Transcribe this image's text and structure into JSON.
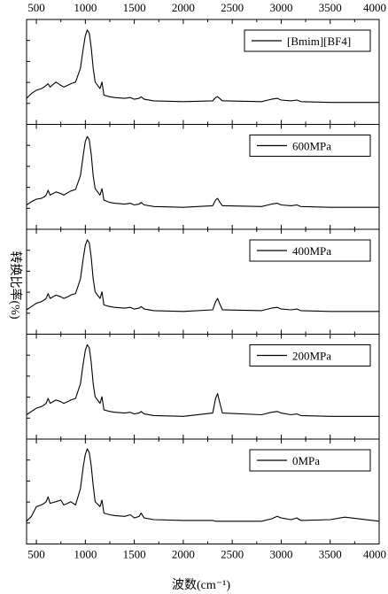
{
  "chart_data": {
    "type": "line",
    "xlabel": "波数(cm⁻¹)",
    "ylabel": "转换比率(%)",
    "xlim": [
      400,
      4000
    ],
    "xticks": [
      "500",
      "1000",
      "1500",
      "2000",
      "2500",
      "3000",
      "3500",
      "4000"
    ],
    "xtick_values": [
      500,
      1000,
      1500,
      2000,
      2500,
      3000,
      3500,
      4000
    ],
    "panels": [
      {
        "legend": "[Bmim][BF4]",
        "series": [
          {
            "x": [
              400,
              450,
              500,
              550,
              580,
              600,
              620,
              640,
              700,
              750,
              780,
              820,
              850,
              900,
              950,
              980,
              1000,
              1020,
              1040,
              1060,
              1080,
              1100,
              1150,
              1170,
              1190,
              1250,
              1300,
              1400,
              1460,
              1500,
              1550,
              1570,
              1600,
              1700,
              2000,
              2300,
              2330,
              2350,
              2370,
              2400,
              2800,
              2900,
              2960,
              3000,
              3100,
              3160,
              3200,
              3500,
              3650,
              4000
            ],
            "y": [
              8,
              14,
              18,
              20,
              22,
              24,
              26,
              22,
              28,
              24,
              22,
              24,
              26,
              28,
              45,
              70,
              85,
              92,
              88,
              70,
              45,
              28,
              20,
              28,
              12,
              10,
              9,
              8,
              9,
              7,
              8,
              10,
              7,
              5,
              4,
              5,
              9,
              10,
              8,
              5,
              4,
              7,
              8,
              6,
              5,
              6,
              4,
              3,
              3,
              3
            ]
          }
        ]
      },
      {
        "legend": "600MPa",
        "series": [
          {
            "x": [
              400,
              450,
              500,
              550,
              580,
              600,
              620,
              640,
              700,
              750,
              780,
              820,
              850,
              900,
              950,
              980,
              1000,
              1020,
              1040,
              1060,
              1080,
              1100,
              1150,
              1170,
              1190,
              1250,
              1300,
              1400,
              1460,
              1500,
              1550,
              1570,
              1600,
              1700,
              2000,
              2300,
              2330,
              2350,
              2370,
              2400,
              2800,
              2900,
              2960,
              3000,
              3100,
              3160,
              3200,
              3500,
              3650,
              4000
            ],
            "y": [
              6,
              10,
              13,
              14,
              16,
              18,
              24,
              18,
              22,
              20,
              18,
              21,
              23,
              25,
              42,
              68,
              84,
              90,
              86,
              68,
              42,
              26,
              18,
              26,
              12,
              9,
              8,
              7,
              8,
              6,
              7,
              9,
              6,
              4,
              3,
              5,
              12,
              14,
              10,
              5,
              4,
              7,
              8,
              6,
              5,
              6,
              4,
              3,
              3,
              3
            ]
          }
        ]
      },
      {
        "legend": "400MPa",
        "series": [
          {
            "x": [
              400,
              450,
              500,
              550,
              580,
              600,
              620,
              640,
              700,
              750,
              780,
              820,
              850,
              900,
              950,
              980,
              1000,
              1020,
              1040,
              1060,
              1080,
              1100,
              1150,
              1170,
              1190,
              1250,
              1300,
              1400,
              1460,
              1500,
              1550,
              1570,
              1600,
              1700,
              2000,
              2300,
              2330,
              2350,
              2370,
              2400,
              2800,
              2900,
              2960,
              3000,
              3100,
              3160,
              3200,
              3500,
              3650,
              4000
            ],
            "y": [
              6,
              10,
              14,
              16,
              18,
              20,
              26,
              20,
              24,
              22,
              20,
              22,
              24,
              26,
              44,
              70,
              85,
              92,
              88,
              70,
              44,
              28,
              20,
              28,
              12,
              10,
              9,
              8,
              9,
              7,
              8,
              10,
              7,
              5,
              4,
              6,
              16,
              20,
              14,
              6,
              5,
              8,
              9,
              7,
              6,
              7,
              5,
              4,
              4,
              4
            ]
          }
        ]
      },
      {
        "legend": "200MPa",
        "series": [
          {
            "x": [
              400,
              450,
              500,
              550,
              580,
              600,
              620,
              640,
              700,
              750,
              780,
              820,
              850,
              900,
              950,
              980,
              1000,
              1020,
              1040,
              1060,
              1080,
              1100,
              1150,
              1170,
              1190,
              1250,
              1300,
              1400,
              1460,
              1500,
              1550,
              1570,
              1600,
              1700,
              2000,
              2300,
              2330,
              2350,
              2370,
              2400,
              2800,
              2900,
              2960,
              3000,
              3100,
              3160,
              3200,
              3500,
              3650,
              4000
            ],
            "y": [
              6,
              10,
              14,
              16,
              18,
              20,
              26,
              20,
              24,
              22,
              20,
              22,
              24,
              26,
              44,
              70,
              85,
              92,
              88,
              70,
              44,
              28,
              20,
              28,
              12,
              10,
              9,
              8,
              9,
              7,
              8,
              10,
              7,
              5,
              4,
              8,
              26,
              32,
              22,
              8,
              6,
              9,
              10,
              8,
              6,
              7,
              5,
              4,
              4,
              4
            ]
          }
        ]
      },
      {
        "legend": "0MPa",
        "series": [
          {
            "x": [
              400,
              450,
              500,
              550,
              580,
              600,
              620,
              640,
              700,
              750,
              780,
              820,
              850,
              900,
              950,
              980,
              1000,
              1020,
              1040,
              1060,
              1080,
              1100,
              1150,
              1170,
              1190,
              1250,
              1300,
              1400,
              1460,
              1500,
              1550,
              1570,
              1600,
              1700,
              2000,
              2300,
              2330,
              2350,
              2370,
              2400,
              2800,
              2900,
              2960,
              3000,
              3100,
              3160,
              3200,
              3500,
              3650,
              4000
            ],
            "y": [
              4,
              10,
              22,
              24,
              26,
              28,
              34,
              26,
              28,
              30,
              24,
              26,
              28,
              24,
              44,
              72,
              86,
              93,
              88,
              72,
              48,
              28,
              22,
              30,
              14,
              12,
              11,
              10,
              12,
              8,
              10,
              14,
              8,
              6,
              5,
              5,
              4,
              4,
              4,
              4,
              4,
              7,
              10,
              8,
              6,
              8,
              5,
              6,
              9,
              4
            ]
          }
        ]
      }
    ]
  }
}
